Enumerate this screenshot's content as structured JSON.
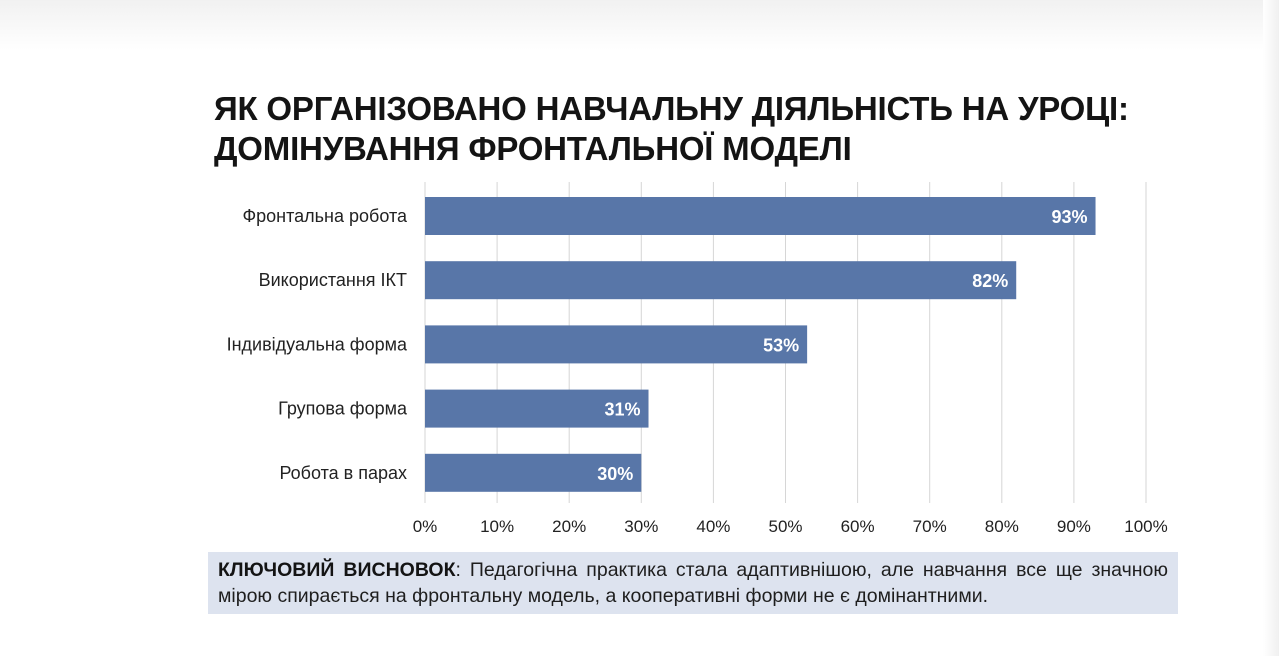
{
  "chart_data": {
    "type": "bar",
    "orientation": "horizontal",
    "title_lines": [
      "ЯК ОРГАНІЗОВАНО НАВЧАЛЬНУ ДІЯЛЬНІСТЬ НА УРОЦІ:",
      "ДОМІНУВАННЯ ФРОНТАЛЬНОЇ МОДЕЛІ"
    ],
    "categories": [
      "Фронтальна робота",
      "Використання ІКТ",
      "Індивідуальна форма",
      "Групова форма",
      "Робота в парах"
    ],
    "values": [
      93,
      82,
      53,
      31,
      30
    ],
    "value_labels": [
      "93%",
      "82%",
      "53%",
      "31%",
      "30%"
    ],
    "xlim": [
      0,
      100
    ],
    "x_ticks": [
      0,
      10,
      20,
      30,
      40,
      50,
      60,
      70,
      80,
      90,
      100
    ],
    "x_tick_labels": [
      "0%",
      "10%",
      "20%",
      "30%",
      "40%",
      "50%",
      "60%",
      "70%",
      "80%",
      "90%",
      "100%"
    ],
    "grid": "vertical",
    "legend": "none",
    "colors": {
      "bar": "#5876a8",
      "grid": "#d6d6d6",
      "label": "#222222",
      "value_label": "#ffffff"
    }
  },
  "conclusion": {
    "label": "КЛЮЧОВИЙ ВИСНОВОК",
    "text": ": Педагогічна практика стала адаптивнішою, але навчання все ще значною мірою спирається на фронтальну модель, а кооперативні форми не є домінантними."
  }
}
